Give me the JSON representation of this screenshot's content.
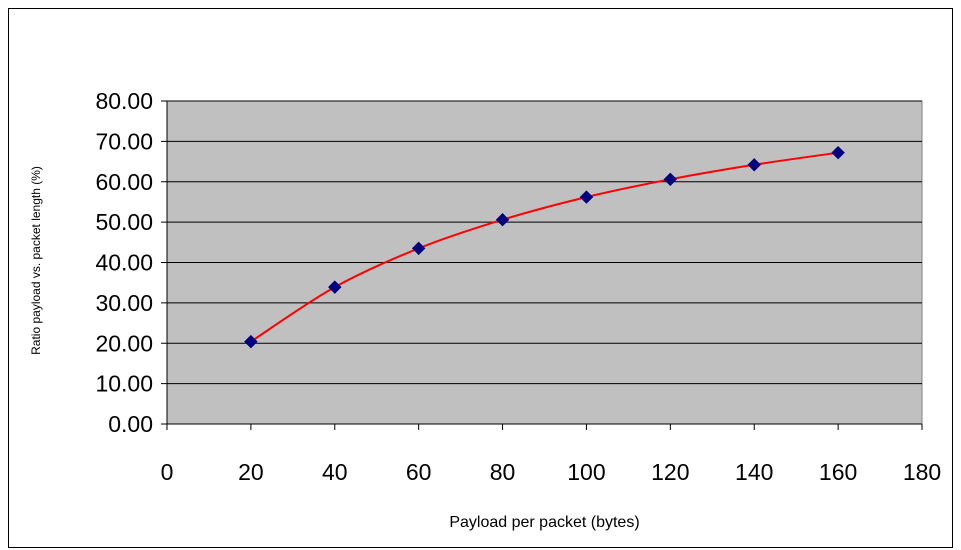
{
  "chart_data": {
    "type": "line",
    "title": "",
    "xlabel": "Payload per packet (bytes)",
    "ylabel": "Ratio payload vs. packet  length (%)",
    "xlim": [
      0,
      180
    ],
    "ylim": [
      0,
      80
    ],
    "x_ticks": [
      "0",
      "20",
      "40",
      "60",
      "80",
      "100",
      "120",
      "140",
      "160",
      "180"
    ],
    "y_ticks": [
      "0.00",
      "10.00",
      "20.00",
      "30.00",
      "40.00",
      "50.00",
      "60.00",
      "70.00",
      "80.00"
    ],
    "grid": "horizontal",
    "legend": "none",
    "series": [
      {
        "x": [
          20,
          40,
          60,
          80,
          100,
          120,
          140,
          160
        ],
        "y": [
          20.4,
          33.9,
          43.5,
          50.6,
          56.2,
          60.6,
          64.2,
          67.2
        ],
        "line_color": "#ff0000",
        "marker_color": "#000080",
        "marker": "diamond"
      }
    ],
    "plot_background": "#c0c0c0"
  }
}
